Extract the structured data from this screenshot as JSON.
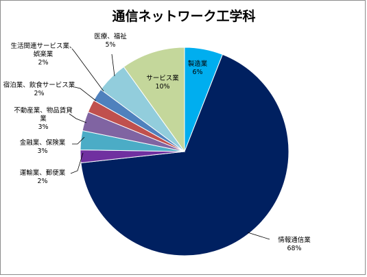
{
  "chart_data": {
    "type": "pie",
    "title": "通信ネットワーク工学科",
    "slices": [
      {
        "label": "製造業",
        "label_lines": [
          "製造業"
        ],
        "percent_text": "6%",
        "value": 6,
        "color": "#00aeef"
      },
      {
        "label": "情報通信業",
        "label_lines": [
          "情報通信業"
        ],
        "percent_text": "68%",
        "value": 68,
        "color": "#002060"
      },
      {
        "label": "運輸業、郵便業",
        "label_lines": [
          "運輸業、郵便業"
        ],
        "percent_text": "2%",
        "value": 2,
        "color": "#7030a0"
      },
      {
        "label": "金融業、保険業",
        "label_lines": [
          "金融業、保険業"
        ],
        "percent_text": "3%",
        "value": 3,
        "color": "#4bacc6"
      },
      {
        "label": "不動産業、物品賃貸業",
        "label_lines": [
          "不動産業、物品賃貸",
          "業"
        ],
        "percent_text": "3%",
        "value": 3,
        "color": "#8064a2"
      },
      {
        "label": "宿泊業、飲食サービス業",
        "label_lines": [
          "宿泊業、飲食サービス業"
        ],
        "percent_text": "2%",
        "value": 2,
        "color": "#c0504d"
      },
      {
        "label": "生活関連サービス業、娯楽業",
        "label_lines": [
          "生活関連サービス業、",
          "娯楽業"
        ],
        "percent_text": "2%",
        "value": 2,
        "color": "#4f81bd"
      },
      {
        "label": "医療、福祉",
        "label_lines": [
          "医療、福祉"
        ],
        "percent_text": "5%",
        "value": 5,
        "color": "#92cddc"
      },
      {
        "label": "サービス業",
        "label_lines": [
          "サービス業"
        ],
        "percent_text": "10%",
        "value": 10,
        "color": "#c4d79b"
      }
    ]
  }
}
